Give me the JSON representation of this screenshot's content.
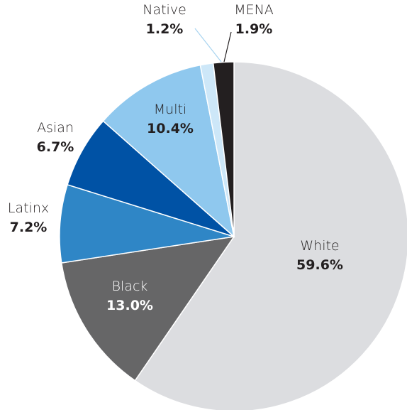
{
  "chart_data": {
    "type": "pie",
    "title": "",
    "slices": [
      {
        "label": "White",
        "value_label": "59.6%",
        "value": 59.6,
        "color": "#dcdde0"
      },
      {
        "label": "Black",
        "value_label": "13.0%",
        "value": 13.0,
        "color": "#666667"
      },
      {
        "label": "Latinx",
        "value_label": "7.2%",
        "value": 7.2,
        "color": "#2f86c6"
      },
      {
        "label": "Asian",
        "value_label": "6.7%",
        "value": 6.7,
        "color": "#0052a5"
      },
      {
        "label": "Multi",
        "value_label": "10.4%",
        "value": 10.4,
        "color": "#8fc8ee"
      },
      {
        "label": "Native",
        "value_label": "1.2%",
        "value": 1.2,
        "color": "#cde7f8"
      },
      {
        "label": "MENA",
        "value_label": "1.9%",
        "value": 1.9,
        "color": "#231f20"
      }
    ],
    "start_angle_deg": 0,
    "direction": "clockwise",
    "legend": "none"
  }
}
